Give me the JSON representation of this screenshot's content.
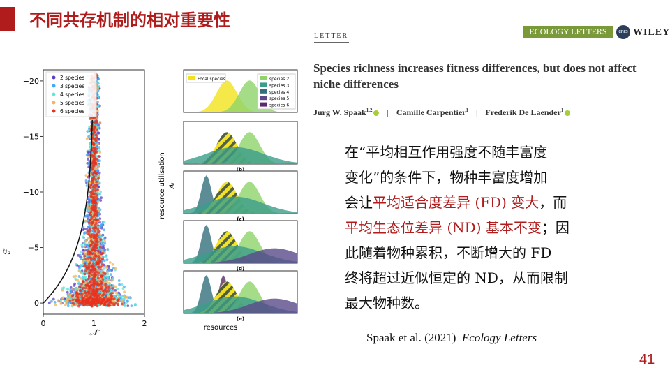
{
  "slide": {
    "title": "不同共存机制的相对重要性",
    "page_number": "41",
    "accent_color": "#b01c1c"
  },
  "paper": {
    "section_tag": "LETTER",
    "journal": "ECOLOGY LETTERS",
    "publisher_logo": "cnrs",
    "publisher": "WILEY",
    "title": "Species richness increases fitness differences, but does not affect niche differences",
    "authors": [
      {
        "name": "Jurg W. Spaak",
        "sup": "1,2"
      },
      {
        "name": "Camille Carpentier",
        "sup": "1"
      },
      {
        "name": "Frederik De Laender",
        "sup": "1"
      }
    ],
    "separator": "|"
  },
  "body_text": {
    "l1": "在“平均相互作用强度不随丰富度",
    "l2": "变化”的条件下，物种丰富度增加",
    "l3a": "会让",
    "l3b": "平均适合度差异 (FD) 变大",
    "l3c": "，而",
    "l4a": "平均生态位差异 (ND) 基本不变",
    "l4b": "；因",
    "l5": "此随着物种累积，不断增大的 FD",
    "l6": "终将超过近似恒定的 ND，从而限制",
    "l7": "最大物种数。"
  },
  "citation": {
    "text": "Spaak et al. (2021)",
    "journal": "Ecology Letters"
  },
  "figure_left": {
    "xlabel": "𝒩",
    "ylabel": "ℱ",
    "x_ticks": [
      "0",
      "1",
      "2"
    ],
    "y_ticks": [
      "−20",
      "−15",
      "−10",
      "−5",
      "0"
    ],
    "legend": [
      "2 species",
      "3 species",
      "4 species",
      "5 species",
      "6 species"
    ],
    "legend_colors": [
      "#5b3cc4",
      "#3fa9f5",
      "#5ee8d6",
      "#f5b35a",
      "#e8321e"
    ]
  },
  "figure_right": {
    "ylabel": "resource utilisation",
    "ylabel2": "Aᵢ",
    "xlabel": "resources",
    "legend": [
      "Focal species",
      "species 2",
      "species 3",
      "species 4",
      "species 5",
      "species 6"
    ],
    "legend_colors": [
      "#f2e21c",
      "#8fd36a",
      "#3b9e8a",
      "#336f7a",
      "#5a4a8a",
      "#5a2a6a"
    ],
    "panel_labels": [
      "(b)",
      "(c)",
      "(d)",
      "(e)"
    ]
  },
  "chart_data": [
    {
      "type": "scatter",
      "xlabel": "𝒩",
      "ylabel": "ℱ",
      "xlim": [
        0,
        2
      ],
      "ylim": [
        1,
        -21
      ],
      "x_ticks": [
        0,
        1,
        2
      ],
      "y_ticks": [
        -20,
        -15,
        -10,
        -5,
        0
      ],
      "series": [
        {
          "name": "2 species"
        },
        {
          "name": "3 species"
        },
        {
          "name": "4 species"
        },
        {
          "name": "5 species"
        },
        {
          "name": "6 species"
        }
      ],
      "legend_position": "top-left"
    },
    {
      "type": "area",
      "xlabel": "resources",
      "ylabel": "resource utilisation",
      "panels": [
        "(b)",
        "(c)",
        "(d)",
        "(e)"
      ],
      "series": [
        {
          "name": "Focal species"
        },
        {
          "name": "species 2"
        },
        {
          "name": "species 3"
        },
        {
          "name": "species 4"
        },
        {
          "name": "species 5"
        },
        {
          "name": "species 6"
        }
      ],
      "legend_position": "top"
    }
  ]
}
